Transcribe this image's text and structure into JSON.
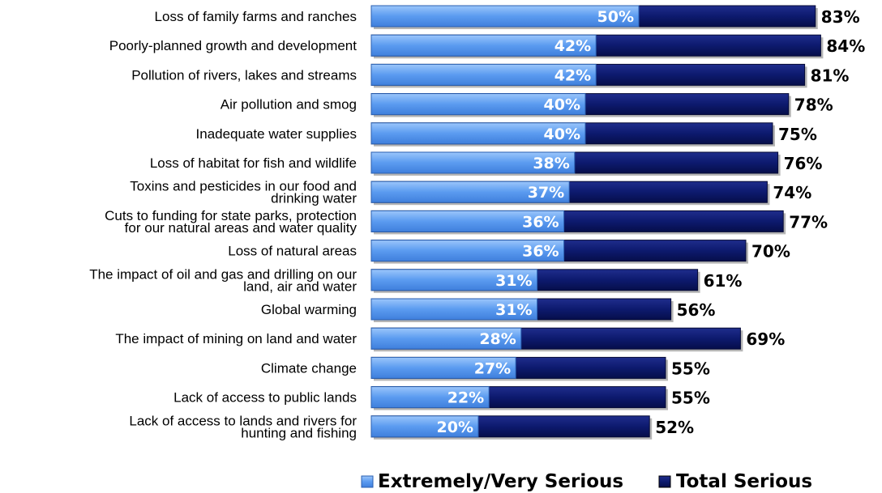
{
  "chart_data": {
    "type": "bar",
    "orientation": "horizontal",
    "categories": [
      [
        "Loss of family farms and ranches"
      ],
      [
        "Poorly-planned growth and development"
      ],
      [
        "Pollution of rivers, lakes and streams"
      ],
      [
        "Air pollution and smog"
      ],
      [
        "Inadequate water supplies"
      ],
      [
        "Loss of habitat for fish and wildlife"
      ],
      [
        "Toxins and pesticides in our food and",
        "drinking water"
      ],
      [
        "Cuts to funding for state parks, protection",
        "for our natural areas and water quality"
      ],
      [
        "Loss of natural areas"
      ],
      [
        "The impact of oil and gas and drilling on our",
        "land, air and water"
      ],
      [
        "Global warming"
      ],
      [
        "The impact of mining on land and water"
      ],
      [
        "Climate change"
      ],
      [
        "Lack of access to public lands"
      ],
      [
        "Lack of access to lands and rivers for",
        "hunting and fishing"
      ]
    ],
    "series": [
      {
        "name": "Extremely/Very Serious",
        "color": "#5b9bf0",
        "values": [
          50,
          42,
          42,
          40,
          40,
          38,
          37,
          36,
          36,
          31,
          31,
          28,
          27,
          22,
          20
        ],
        "labels": [
          "50%",
          "42%",
          "42%",
          "40%",
          "40%",
          "38%",
          "37%",
          "36%",
          "36%",
          "31%",
          "31%",
          "28%",
          "27%",
          "22%",
          "20%"
        ]
      },
      {
        "name": "Total Serious",
        "color": "#0d1a6e",
        "values": [
          83,
          84,
          81,
          78,
          75,
          76,
          74,
          77,
          70,
          61,
          56,
          69,
          55,
          55,
          52
        ],
        "labels": [
          "83%",
          "84%",
          "81%",
          "78%",
          "75%",
          "76%",
          "74%",
          "77%",
          "70%",
          "61%",
          "56%",
          "69%",
          "55%",
          "55%",
          "52%"
        ]
      }
    ],
    "xlim": [
      0,
      100
    ],
    "grid": false,
    "legend_position": "bottom"
  }
}
